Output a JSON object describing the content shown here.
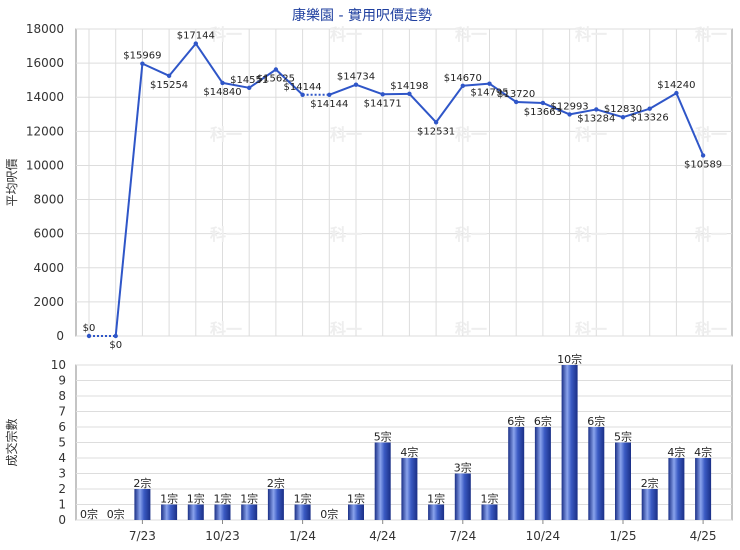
{
  "chart_data": [
    {
      "type": "line",
      "title": "康樂園 - 實用呎價走勢",
      "ylabel": "平均呎價",
      "ylim": [
        0,
        18000
      ],
      "yticks": [
        0,
        2000,
        4000,
        6000,
        8000,
        10000,
        12000,
        14000,
        16000,
        18000
      ],
      "grid": true,
      "values": [
        0,
        0,
        15969,
        15254,
        17144,
        14840,
        14551,
        15625,
        14144,
        14144,
        14734,
        14171,
        14198,
        12531,
        14670,
        14795,
        13720,
        13663,
        12993,
        13284,
        12830,
        13326,
        14240,
        10589
      ],
      "labels": [
        "$0",
        "$0",
        "$15969",
        "$15254",
        "$17144",
        "$14840",
        "$14551",
        "$15625",
        "$14144",
        "$14144",
        "$14734",
        "$14171",
        "$14198",
        "$12531",
        "$14670",
        "$14795",
        "$13720",
        "$13663",
        "$12993",
        "$13284",
        "$12830",
        "$13326",
        "$14240",
        "$10589"
      ],
      "dotted_segments": [
        [
          0,
          1
        ],
        [
          8,
          9
        ]
      ]
    },
    {
      "type": "bar",
      "ylabel": "成交宗數",
      "ylim": [
        0,
        10
      ],
      "yticks": [
        0,
        1,
        2,
        3,
        4,
        5,
        6,
        7,
        8,
        9,
        10
      ],
      "x_tick_labels": [
        "7/23",
        "10/23",
        "1/24",
        "4/24",
        "7/24",
        "10/24",
        "1/25",
        "4/25"
      ],
      "values": [
        0,
        0,
        2,
        1,
        1,
        1,
        1,
        2,
        1,
        0,
        1,
        5,
        4,
        1,
        3,
        1,
        6,
        6,
        10,
        6,
        5,
        2,
        4,
        4
      ],
      "labels": [
        "0宗",
        "0宗",
        "2宗",
        "1宗",
        "1宗",
        "1宗",
        "1宗",
        "2宗",
        "1宗",
        "0宗",
        "1宗",
        "5宗",
        "4宗",
        "1宗",
        "3宗",
        "1宗",
        "6宗",
        "6宗",
        "10宗",
        "6宗",
        "5宗",
        "2宗",
        "4宗",
        "4宗"
      ],
      "bar_color": "#3050b8"
    }
  ],
  "watermark": "科一",
  "colors": {
    "line": "#2f56c8",
    "grid": "#dddddd",
    "axis": "#888888",
    "title": "#1f3f9f"
  }
}
